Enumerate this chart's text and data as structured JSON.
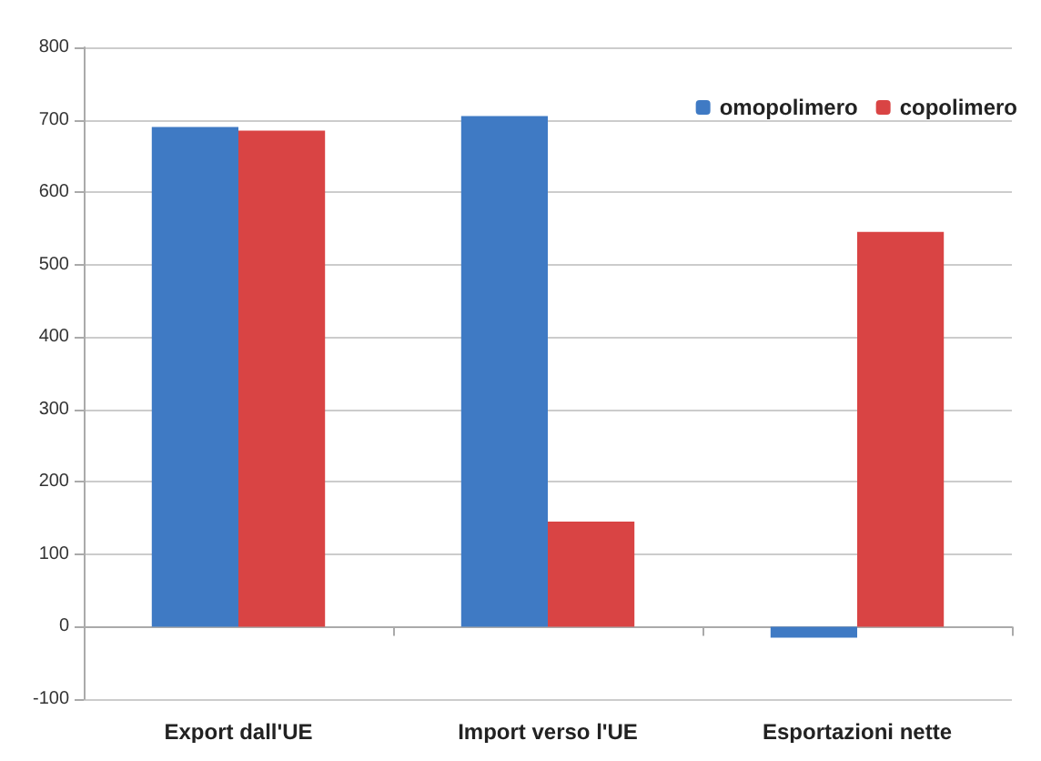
{
  "chart_data": {
    "type": "bar",
    "categories": [
      "Export dall'UE",
      "Import verso l'UE",
      "Esportazioni nette"
    ],
    "series": [
      {
        "name": "omopolimero",
        "color": "#3f7ac4",
        "values": [
          690,
          705,
          -15
        ]
      },
      {
        "name": "copolimero",
        "color": "#d94444",
        "values": [
          685,
          145,
          545
        ]
      }
    ],
    "ylim": [
      -100,
      800
    ],
    "yticks": [
      -100,
      0,
      100,
      200,
      300,
      400,
      500,
      600,
      700,
      800
    ],
    "grid": "y",
    "legend": "top right"
  }
}
